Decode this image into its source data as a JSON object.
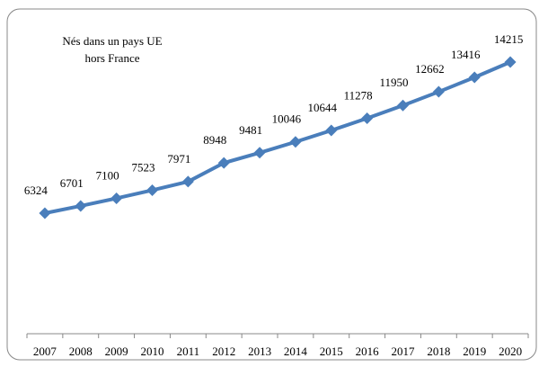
{
  "chart_data": {
    "type": "line",
    "legend": [
      "Nés dans un pays UE",
      "hors France"
    ],
    "categories": [
      "2007",
      "2008",
      "2009",
      "2010",
      "2011",
      "2012",
      "2013",
      "2014",
      "2015",
      "2016",
      "2017",
      "2018",
      "2019",
      "2020"
    ],
    "series": [
      {
        "color": "#4a7ebb",
        "values": [
          6324,
          6701,
          7100,
          7523,
          7971,
          8948,
          9481,
          10046,
          10644,
          11278,
          11950,
          12662,
          13416,
          14215
        ]
      }
    ],
    "ylim": [
      0,
      16000
    ]
  }
}
